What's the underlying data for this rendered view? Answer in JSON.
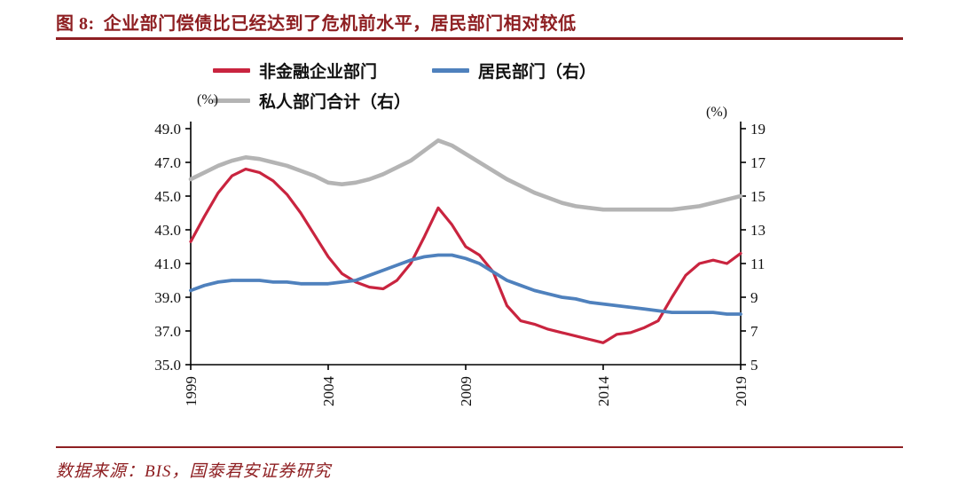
{
  "colors": {
    "accent": "#8e1f22",
    "corporate_red": "#c9243f",
    "household_blue": "#4f81bd",
    "private_gray": "#b4b4b4"
  },
  "header": {
    "figure_label": "图 8:",
    "title": "企业部门偿债比已经达到了危机前水平，居民部门相对较低"
  },
  "footer": {
    "source": "数据来源：BIS，国泰君安证券研究"
  },
  "chart_data": {
    "type": "line",
    "title": "图 8: 企业部门偿债比已经达到了危机前水平，居民部门相对较低",
    "legend_position": "top",
    "grid": false,
    "x": [
      1999,
      1999.5,
      2000,
      2000.5,
      2001,
      2001.5,
      2002,
      2002.5,
      2003,
      2003.5,
      2004,
      2004.5,
      2005,
      2005.5,
      2006,
      2006.5,
      2007,
      2007.5,
      2008,
      2008.5,
      2009,
      2009.5,
      2010,
      2010.5,
      2011,
      2011.5,
      2012,
      2012.5,
      2013,
      2013.5,
      2014,
      2014.5,
      2015,
      2015.5,
      2016,
      2016.5,
      2017,
      2017.5,
      2018,
      2018.5,
      2019
    ],
    "series": [
      {
        "name": "非金融企业部门",
        "axis": "left",
        "color": "#c9243f",
        "values": [
          42.3,
          43.8,
          45.2,
          46.2,
          46.6,
          46.4,
          45.9,
          45.1,
          44.0,
          42.7,
          41.4,
          40.4,
          39.9,
          39.6,
          39.5,
          40.0,
          41.0,
          42.6,
          44.3,
          43.3,
          42.0,
          41.5,
          40.5,
          38.5,
          37.6,
          37.4,
          37.1,
          36.9,
          36.7,
          36.5,
          36.3,
          36.8,
          36.9,
          37.2,
          37.6,
          39.0,
          40.3,
          41.0,
          41.2,
          41.0,
          41.6
        ]
      },
      {
        "name": "居民部门（右）",
        "axis": "right",
        "color": "#4f81bd",
        "values": [
          9.4,
          9.7,
          9.9,
          10.0,
          10.0,
          10.0,
          9.9,
          9.9,
          9.8,
          9.8,
          9.8,
          9.9,
          10.0,
          10.3,
          10.6,
          10.9,
          11.2,
          11.4,
          11.5,
          11.5,
          11.3,
          11.0,
          10.5,
          10.0,
          9.7,
          9.4,
          9.2,
          9.0,
          8.9,
          8.7,
          8.6,
          8.5,
          8.4,
          8.3,
          8.2,
          8.1,
          8.1,
          8.1,
          8.1,
          8.0,
          8.0
        ]
      },
      {
        "name": "私人部门合计（右）",
        "axis": "right",
        "color": "#b4b4b4",
        "values": [
          16.0,
          16.4,
          16.8,
          17.1,
          17.3,
          17.2,
          17.0,
          16.8,
          16.5,
          16.2,
          15.8,
          15.7,
          15.8,
          16.0,
          16.3,
          16.7,
          17.1,
          17.7,
          18.3,
          18.0,
          17.5,
          17.0,
          16.5,
          16.0,
          15.6,
          15.2,
          14.9,
          14.6,
          14.4,
          14.3,
          14.2,
          14.2,
          14.2,
          14.2,
          14.2,
          14.2,
          14.3,
          14.4,
          14.6,
          14.8,
          15.0
        ]
      }
    ],
    "left_axis": {
      "unit": "(%)",
      "min": 35,
      "max": 49,
      "ticks": [
        "35.0",
        "37.0",
        "39.0",
        "41.0",
        "43.0",
        "45.0",
        "47.0",
        "49.0"
      ]
    },
    "right_axis": {
      "unit": "(%)",
      "min": 5,
      "max": 19,
      "ticks": [
        "5",
        "7",
        "9",
        "11",
        "13",
        "15",
        "17",
        "19"
      ]
    },
    "x_axis": {
      "min": 1999,
      "max": 2019,
      "ticks": [
        "1999",
        "2004",
        "2009",
        "2014",
        "2019"
      ]
    }
  }
}
